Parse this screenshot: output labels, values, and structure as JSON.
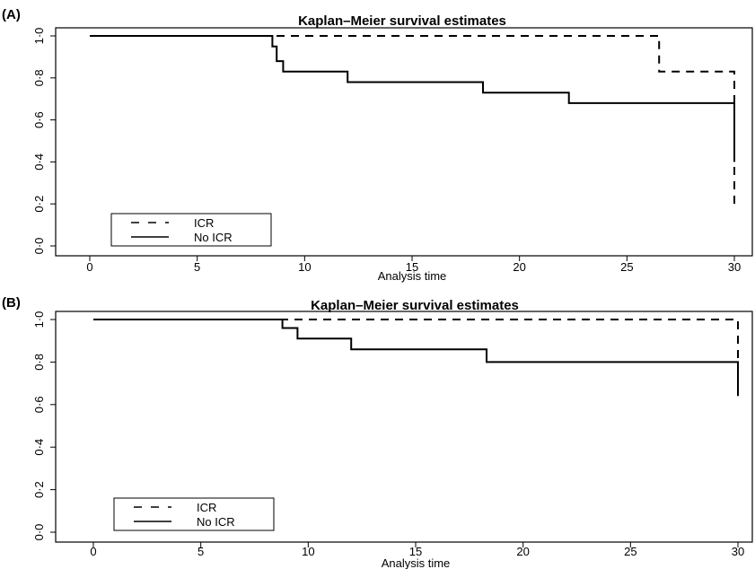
{
  "chart_data": [
    {
      "panel_label": "(A)",
      "type": "line",
      "title": "Kaplan–Meier survival estimates",
      "xlabel": "Analysis time",
      "ylabel": "",
      "xlim": [
        0,
        30
      ],
      "ylim": [
        0,
        1
      ],
      "xticks": [
        0,
        5,
        10,
        15,
        20,
        25,
        30
      ],
      "xtick_labels": [
        "0",
        "5",
        "10",
        "15",
        "20",
        "25",
        "30"
      ],
      "yticks": [
        0,
        0.2,
        0.4,
        0.6,
        0.8,
        1.0
      ],
      "ytick_labels": [
        "0·0",
        "0·2",
        "0·4",
        "0·6",
        "0·8",
        "1·0"
      ],
      "grid": false,
      "legend_position": "bottom-left",
      "series": [
        {
          "name": "ICR",
          "style": "dashed",
          "color": "#000000",
          "x": [
            0,
            26.5,
            26.5,
            30,
            30
          ],
          "y": [
            1.0,
            1.0,
            0.83,
            0.83,
            0.2
          ]
        },
        {
          "name": "No ICR",
          "style": "solid",
          "color": "#000000",
          "x": [
            0,
            8.5,
            8.5,
            8.7,
            8.7,
            9.0,
            9.0,
            12.0,
            12.0,
            18.3,
            18.3,
            22.3,
            22.3,
            30,
            30
          ],
          "y": [
            1.0,
            1.0,
            0.95,
            0.95,
            0.88,
            0.88,
            0.83,
            0.83,
            0.78,
            0.78,
            0.73,
            0.73,
            0.68,
            0.68,
            0.4
          ]
        }
      ]
    },
    {
      "panel_label": "(B)",
      "type": "line",
      "title": "Kaplan–Meier survival estimates",
      "xlabel": "Analysis time",
      "ylabel": "",
      "xlim": [
        0,
        30
      ],
      "ylim": [
        0,
        1
      ],
      "xticks": [
        0,
        5,
        10,
        15,
        20,
        25,
        30
      ],
      "xtick_labels": [
        "0",
        "5",
        "10",
        "15",
        "20",
        "25",
        "30"
      ],
      "yticks": [
        0,
        0.2,
        0.4,
        0.6,
        0.8,
        1.0
      ],
      "ytick_labels": [
        "0·0",
        "0·2",
        "0·4",
        "0·6",
        "0·8",
        "1·0"
      ],
      "grid": false,
      "legend_position": "bottom-left",
      "series": [
        {
          "name": "ICR",
          "style": "dashed",
          "color": "#000000",
          "x": [
            0,
            30,
            30
          ],
          "y": [
            1.0,
            1.0,
            0.8
          ]
        },
        {
          "name": "No ICR",
          "style": "solid",
          "color": "#000000",
          "x": [
            0,
            8.8,
            8.8,
            9.5,
            9.5,
            12.0,
            12.0,
            18.3,
            18.3,
            30,
            30
          ],
          "y": [
            1.0,
            1.0,
            0.96,
            0.96,
            0.91,
            0.91,
            0.86,
            0.86,
            0.8,
            0.8,
            0.64
          ]
        }
      ]
    }
  ]
}
